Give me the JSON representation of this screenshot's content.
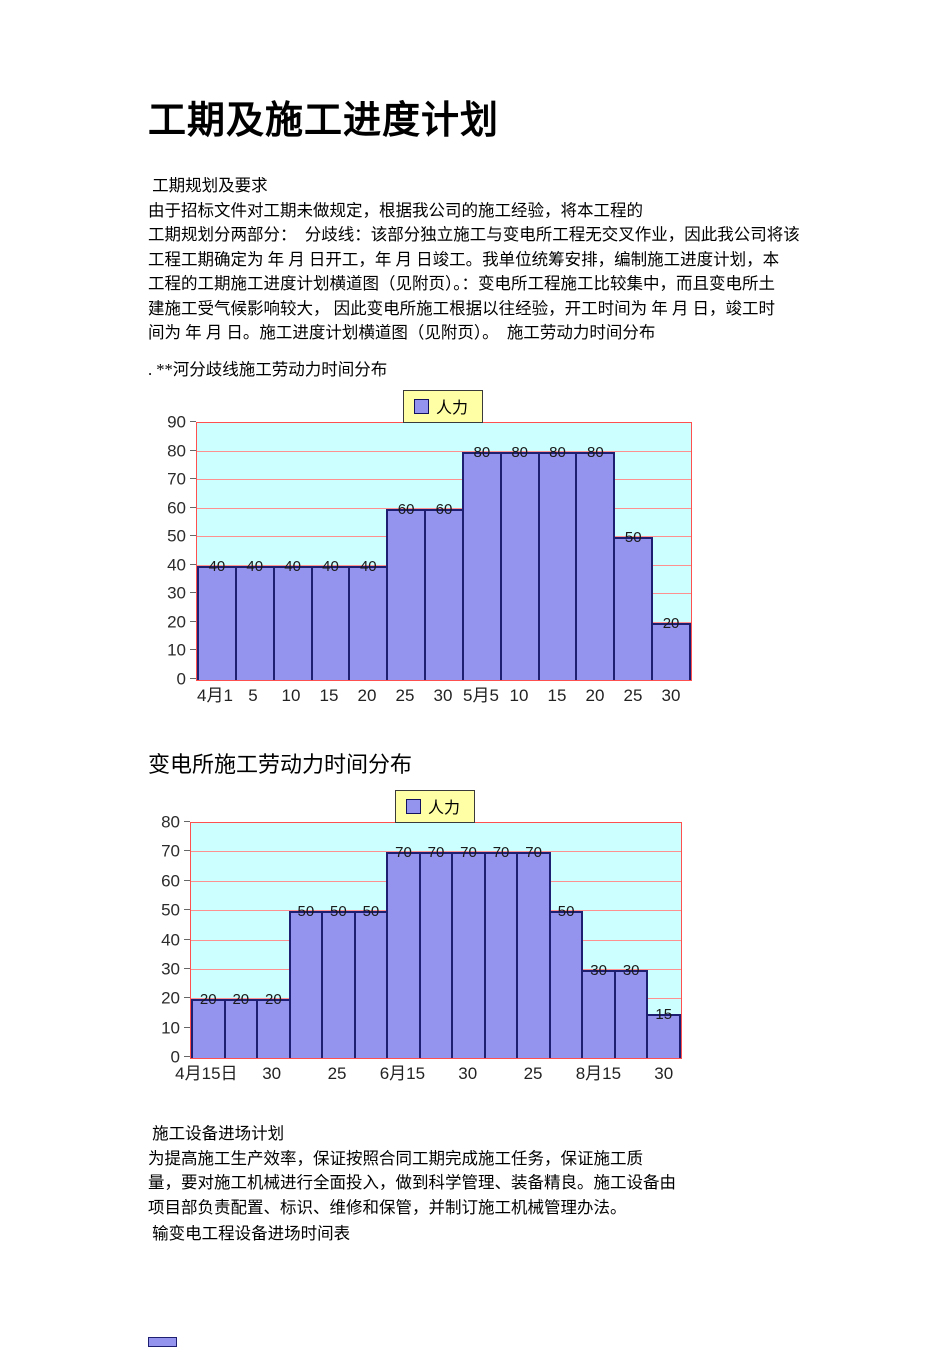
{
  "title": "工期及施工进度计划",
  "sections": {
    "intro_heading": " 工期规划及要求",
    "intro_lines": [
      "由于招标文件对工期未做规定，根据我公司的施工经验，将本工程的",
      "工期规划分两部分：  分歧线：该部分独立施工与变电所工程无交叉作业，因此我公司将该",
      "工程工期确定为 年 月 日开工，年 月 日竣工。我单位统筹安排，编制施工进度计划，本",
      "工程的工期施工进度计划横道图（见附页）。：变电所工程施工比较集中，而且变电所土",
      "建施工受气候影响较大， 因此变电所施工根据以往经验，开工时间为 年 月 日，竣工时",
      "间为 年 月 日。施工进度计划横道图（见附页）。  施工劳动力时间分布"
    ],
    "chart1_caption": ". **河分歧线施工劳动力时间分布",
    "chart2_heading": "变电所施工劳动力时间分布",
    "equipment_heading": " 施工设备进场计划",
    "equipment_lines": [
      "为提高施工生产效率，保证按照合同工期完成施工任务，保证施工质",
      "量，要对施工机械进行全面投入，做到科学管理、装备精良。施工设备由",
      "项目部负责配置、标识、维修和保管，并制订施工机械管理办法。"
    ],
    "table_heading": " 输变电工程设备进场时间表"
  },
  "chart_data": [
    {
      "type": "bar",
      "title": "**河分歧线施工劳动力时间分布",
      "legend": "人力",
      "ylim": [
        0,
        90
      ],
      "ystep": 10,
      "grid": true,
      "legend_position": "top",
      "categories": [
        "4月1",
        "5",
        "10",
        "15",
        "20",
        "25",
        "30",
        "5月5",
        "10",
        "15",
        "20",
        "25",
        "30"
      ],
      "values": [
        40,
        40,
        40,
        40,
        40,
        60,
        60,
        80,
        80,
        80,
        80,
        50,
        20
      ],
      "colors": {
        "bar_fill": "#9494ee",
        "bar_border": "#1f1f72",
        "plot_bg": "#ccffff",
        "gridline": "#ff9090",
        "plot_border": "#ff5050",
        "legend_bg": "#ffffa6"
      }
    },
    {
      "type": "bar",
      "title": "变电所施工劳动力时间分布",
      "legend": "人力",
      "ylim": [
        0,
        80
      ],
      "ystep": 10,
      "grid": true,
      "legend_position": "top",
      "categories": [
        "4月15日",
        "",
        "30",
        "",
        "25",
        "",
        "6月15",
        "",
        "30",
        "",
        "25",
        "",
        "8月15",
        "",
        "30"
      ],
      "values": [
        20,
        20,
        20,
        50,
        50,
        50,
        70,
        70,
        70,
        70,
        70,
        50,
        30,
        30,
        15
      ],
      "colors": {
        "bar_fill": "#9494ee",
        "bar_border": "#1f1f72",
        "plot_bg": "#ccffff",
        "gridline": "#ff9090",
        "plot_border": "#ff5050",
        "legend_bg": "#ffffa6"
      }
    }
  ]
}
